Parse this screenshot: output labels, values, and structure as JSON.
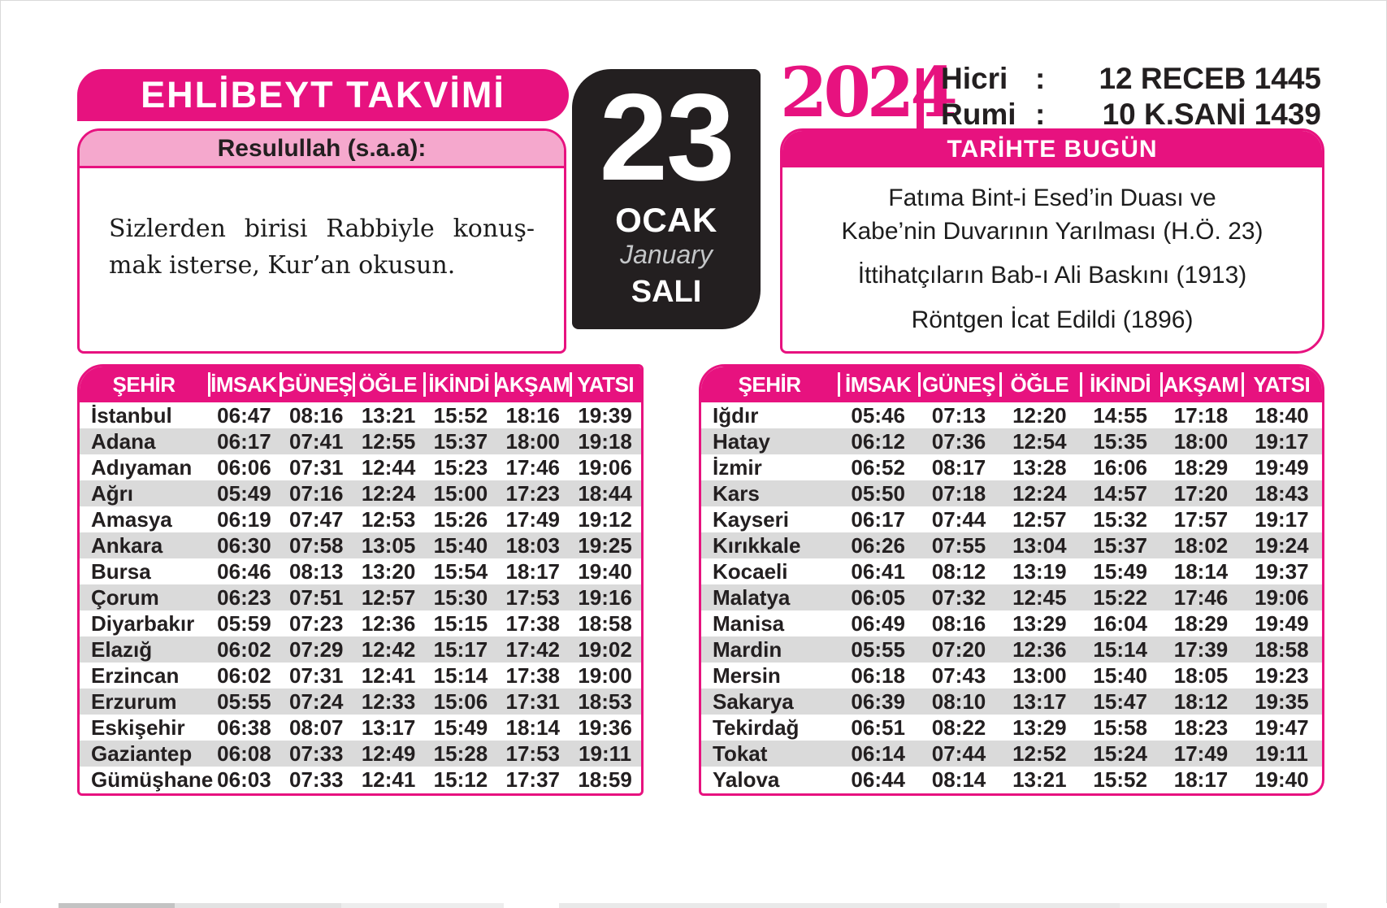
{
  "page": {
    "title": "EHLİBEYT TAKVİMİ",
    "quote": {
      "header": "Resulullah (s.a.a):",
      "line1": "Sizlerden birisi Rabbiyle konuş-",
      "line2": "mak isterse, Kur’an okusun."
    },
    "date": {
      "day": "23",
      "month_tr": "OCAK",
      "month_en": "January",
      "weekday": "SALI"
    },
    "year": "2024",
    "hicri": {
      "label": "Hicri",
      "colon": ":",
      "value": "12 RECEB 1445"
    },
    "rumi": {
      "label": "Rumi",
      "colon": ":",
      "value": "10 K.SANİ 1439"
    },
    "today_in_history": {
      "title": "TARİHTE BUGÜN",
      "events": [
        "Fatıma Bint-i Esed’in Duası ve\nKabe’nin Duvarının Yarılması (H.Ö. 23)",
        "İttihatçıların Bab-ı Ali Baskını (1913)",
        "Röntgen İcat Edildi (1896)"
      ]
    }
  },
  "tables": {
    "headers": [
      "ŞEHİR",
      "İMSAK",
      "GÜNEŞ",
      "ÖĞLE",
      "İKİNDİ",
      "AKŞAM",
      "YATSI"
    ],
    "left": [
      [
        "İstanbul",
        "06:47",
        "08:16",
        "13:21",
        "15:52",
        "18:16",
        "19:39"
      ],
      [
        "Adana",
        "06:17",
        "07:41",
        "12:55",
        "15:37",
        "18:00",
        "19:18"
      ],
      [
        "Adıyaman",
        "06:06",
        "07:31",
        "12:44",
        "15:23",
        "17:46",
        "19:06"
      ],
      [
        "Ağrı",
        "05:49",
        "07:16",
        "12:24",
        "15:00",
        "17:23",
        "18:44"
      ],
      [
        "Amasya",
        "06:19",
        "07:47",
        "12:53",
        "15:26",
        "17:49",
        "19:12"
      ],
      [
        "Ankara",
        "06:30",
        "07:58",
        "13:05",
        "15:40",
        "18:03",
        "19:25"
      ],
      [
        "Bursa",
        "06:46",
        "08:13",
        "13:20",
        "15:54",
        "18:17",
        "19:40"
      ],
      [
        "Çorum",
        "06:23",
        "07:51",
        "12:57",
        "15:30",
        "17:53",
        "19:16"
      ],
      [
        "Diyarbakır",
        "05:59",
        "07:23",
        "12:36",
        "15:15",
        "17:38",
        "18:58"
      ],
      [
        "Elazığ",
        "06:02",
        "07:29",
        "12:42",
        "15:17",
        "17:42",
        "19:02"
      ],
      [
        "Erzincan",
        "06:02",
        "07:31",
        "12:41",
        "15:14",
        "17:38",
        "19:00"
      ],
      [
        "Erzurum",
        "05:55",
        "07:24",
        "12:33",
        "15:06",
        "17:31",
        "18:53"
      ],
      [
        "Eskişehir",
        "06:38",
        "08:07",
        "13:17",
        "15:49",
        "18:14",
        "19:36"
      ],
      [
        "Gaziantep",
        "06:08",
        "07:33",
        "12:49",
        "15:28",
        "17:53",
        "19:11"
      ],
      [
        "Gümüşhane",
        "06:03",
        "07:33",
        "12:41",
        "15:12",
        "17:37",
        "18:59"
      ]
    ],
    "right": [
      [
        "Iğdır",
        "05:46",
        "07:13",
        "12:20",
        "14:55",
        "17:18",
        "18:40"
      ],
      [
        "Hatay",
        "06:12",
        "07:36",
        "12:54",
        "15:35",
        "18:00",
        "19:17"
      ],
      [
        "İzmir",
        "06:52",
        "08:17",
        "13:28",
        "16:06",
        "18:29",
        "19:49"
      ],
      [
        "Kars",
        "05:50",
        "07:18",
        "12:24",
        "14:57",
        "17:20",
        "18:43"
      ],
      [
        "Kayseri",
        "06:17",
        "07:44",
        "12:57",
        "15:32",
        "17:57",
        "19:17"
      ],
      [
        "Kırıkkale",
        "06:26",
        "07:55",
        "13:04",
        "15:37",
        "18:02",
        "19:24"
      ],
      [
        "Kocaeli",
        "06:41",
        "08:12",
        "13:19",
        "15:49",
        "18:14",
        "19:37"
      ],
      [
        "Malatya",
        "06:05",
        "07:32",
        "12:45",
        "15:22",
        "17:46",
        "19:06"
      ],
      [
        "Manisa",
        "06:49",
        "08:16",
        "13:29",
        "16:04",
        "18:29",
        "19:49"
      ],
      [
        "Mardin",
        "05:55",
        "07:20",
        "12:36",
        "15:14",
        "17:39",
        "18:58"
      ],
      [
        "Mersin",
        "06:18",
        "07:43",
        "13:00",
        "15:40",
        "18:05",
        "19:23"
      ],
      [
        "Sakarya",
        "06:39",
        "08:10",
        "13:17",
        "15:47",
        "18:12",
        "19:35"
      ],
      [
        "Tekirdağ",
        "06:51",
        "08:22",
        "13:29",
        "15:58",
        "18:23",
        "19:47"
      ],
      [
        "Tokat",
        "06:14",
        "07:44",
        "12:52",
        "15:24",
        "17:49",
        "19:11"
      ],
      [
        "Yalova",
        "06:44",
        "08:14",
        "13:21",
        "15:52",
        "18:17",
        "19:40"
      ]
    ]
  },
  "colors": {
    "magenta": "#e7127f",
    "light_pink": "#f5a8cd",
    "row_gray": "#dadada",
    "box_black": "#231f20"
  }
}
